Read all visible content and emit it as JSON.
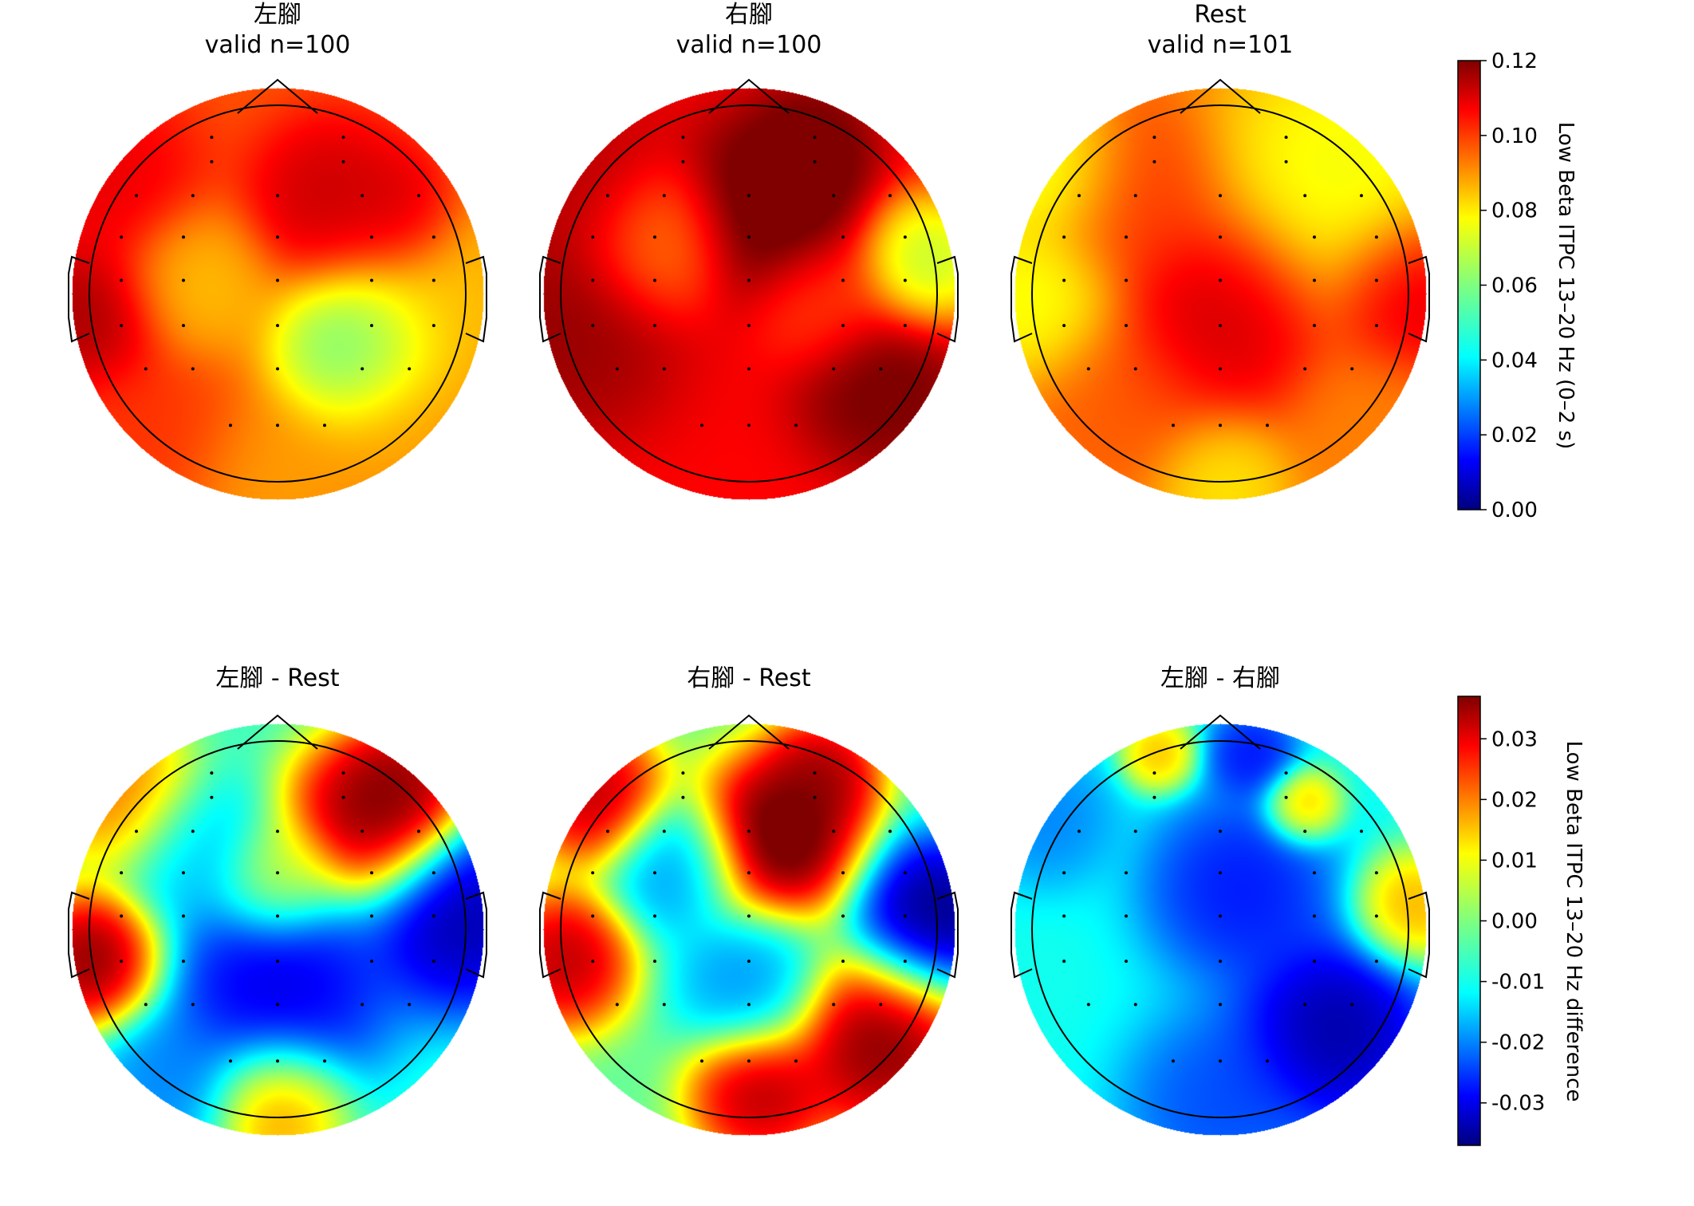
{
  "chart_data": [
    {
      "type": "heatmap",
      "subtype": "topomap",
      "title_lines": [
        "左腳",
        "valid n=100"
      ],
      "colorbar_group": "itpc",
      "blobs": [
        {
          "u": 0.27,
          "v": -0.45,
          "val": 0.115,
          "s": 0.22
        },
        {
          "u": 0.6,
          "v": -0.4,
          "val": 0.115,
          "s": 0.16
        },
        {
          "u": -0.93,
          "v": 0.12,
          "val": 0.12,
          "s": 0.2
        },
        {
          "u": -0.85,
          "v": -0.55,
          "val": 0.11,
          "s": 0.25
        },
        {
          "u": 0.38,
          "v": 0.27,
          "val": 0.05,
          "s": 0.22
        },
        {
          "u": 0.85,
          "v": 0.0,
          "val": 0.08,
          "s": 0.3
        },
        {
          "u": -0.4,
          "v": -0.05,
          "val": 0.08,
          "s": 0.2
        },
        {
          "u": 0.0,
          "v": 0.95,
          "val": 0.085,
          "s": 0.25
        },
        {
          "u": -0.65,
          "v": 0.7,
          "val": 0.1,
          "s": 0.25
        },
        {
          "u": 0.65,
          "v": 0.7,
          "val": 0.085,
          "s": 0.25
        }
      ],
      "base_value": 0.095
    },
    {
      "type": "heatmap",
      "subtype": "topomap",
      "title_lines": [
        "右腳",
        "valid n=100"
      ],
      "colorbar_group": "itpc",
      "blobs": [
        {
          "u": 0.12,
          "v": -0.42,
          "val": 0.13,
          "s": 0.25
        },
        {
          "u": 0.3,
          "v": -0.72,
          "val": 0.125,
          "s": 0.15
        },
        {
          "u": 0.65,
          "v": 0.45,
          "val": 0.125,
          "s": 0.22
        },
        {
          "u": -0.9,
          "v": 0.15,
          "val": 0.12,
          "s": 0.3
        },
        {
          "u": 0.85,
          "v": -0.15,
          "val": 0.06,
          "s": 0.18
        },
        {
          "u": -0.45,
          "v": -0.25,
          "val": 0.085,
          "s": 0.2
        },
        {
          "u": 0.35,
          "v": 0.05,
          "val": 0.095,
          "s": 0.18
        },
        {
          "u": -0.85,
          "v": -0.55,
          "val": 0.115,
          "s": 0.25
        }
      ],
      "base_value": 0.105
    },
    {
      "type": "heatmap",
      "subtype": "topomap",
      "title_lines": [
        "Rest",
        "valid n=101"
      ],
      "colorbar_group": "itpc",
      "blobs": [
        {
          "u": 0.0,
          "v": 0.12,
          "val": 0.115,
          "s": 0.28
        },
        {
          "u": 0.95,
          "v": 0.0,
          "val": 0.115,
          "s": 0.22
        },
        {
          "u": -0.88,
          "v": 0.05,
          "val": 0.07,
          "s": 0.22
        },
        {
          "u": -0.8,
          "v": -0.6,
          "val": 0.065,
          "s": 0.2
        },
        {
          "u": 0.6,
          "v": -0.55,
          "val": 0.07,
          "s": 0.35
        },
        {
          "u": 0.0,
          "v": 0.9,
          "val": 0.075,
          "s": 0.18
        },
        {
          "u": -0.5,
          "v": 0.55,
          "val": 0.095,
          "s": 0.25
        },
        {
          "u": -0.45,
          "v": -0.5,
          "val": 0.1,
          "s": 0.25
        },
        {
          "u": 0.75,
          "v": 0.65,
          "val": 0.09,
          "s": 0.22
        }
      ],
      "base_value": 0.09
    },
    {
      "type": "heatmap",
      "subtype": "topomap",
      "title_lines": [
        "左腳 - Rest"
      ],
      "colorbar_group": "diff",
      "blobs": [
        {
          "u": 0.45,
          "v": -0.55,
          "val": 0.045,
          "s": 0.22
        },
        {
          "u": 0.6,
          "v": -0.7,
          "val": 0.04,
          "s": 0.15
        },
        {
          "u": -0.9,
          "v": 0.15,
          "val": 0.045,
          "s": 0.18
        },
        {
          "u": 0.0,
          "v": 0.3,
          "val": -0.035,
          "s": 0.3
        },
        {
          "u": 0.9,
          "v": -0.05,
          "val": -0.04,
          "s": 0.25
        },
        {
          "u": -0.4,
          "v": -0.4,
          "val": -0.015,
          "s": 0.2
        },
        {
          "u": 0.0,
          "v": 0.85,
          "val": 0.025,
          "s": 0.18
        },
        {
          "u": -0.75,
          "v": -0.65,
          "val": 0.025,
          "s": 0.2
        },
        {
          "u": -0.55,
          "v": 0.75,
          "val": -0.02,
          "s": 0.2
        },
        {
          "u": 0.0,
          "v": -0.25,
          "val": 0.01,
          "s": 0.16
        }
      ],
      "base_value": -0.005
    },
    {
      "type": "heatmap",
      "subtype": "topomap",
      "title_lines": [
        "右腳 - Rest"
      ],
      "colorbar_group": "diff",
      "blobs": [
        {
          "u": 0.15,
          "v": -0.45,
          "val": 0.05,
          "s": 0.22
        },
        {
          "u": 0.35,
          "v": -0.75,
          "val": 0.04,
          "s": 0.15
        },
        {
          "u": 0.65,
          "v": 0.55,
          "val": 0.045,
          "s": 0.25
        },
        {
          "u": -0.9,
          "v": 0.15,
          "val": 0.04,
          "s": 0.18
        },
        {
          "u": 0.9,
          "v": -0.05,
          "val": -0.045,
          "s": 0.22
        },
        {
          "u": -0.35,
          "v": -0.3,
          "val": -0.02,
          "s": 0.18
        },
        {
          "u": 0.0,
          "v": 0.25,
          "val": -0.02,
          "s": 0.2
        },
        {
          "u": -0.75,
          "v": -0.65,
          "val": 0.04,
          "s": 0.18
        },
        {
          "u": 0.05,
          "v": 0.8,
          "val": 0.04,
          "s": 0.18
        }
      ],
      "base_value": -0.002
    },
    {
      "type": "heatmap",
      "subtype": "topomap",
      "title_lines": [
        "左腳 - 右腳"
      ],
      "colorbar_group": "diff",
      "blobs": [
        {
          "u": 0.55,
          "v": 0.5,
          "val": -0.04,
          "s": 0.25
        },
        {
          "u": 0.1,
          "v": -0.2,
          "val": -0.03,
          "s": 0.25
        },
        {
          "u": 0.15,
          "v": -0.85,
          "val": -0.03,
          "s": 0.12
        },
        {
          "u": 0.93,
          "v": -0.1,
          "val": 0.02,
          "s": 0.15
        },
        {
          "u": -0.3,
          "v": -0.85,
          "val": 0.018,
          "s": 0.1
        },
        {
          "u": 0.4,
          "v": -0.6,
          "val": 0.02,
          "s": 0.1
        },
        {
          "u": -0.85,
          "v": -0.55,
          "val": -0.02,
          "s": 0.18
        },
        {
          "u": 0.0,
          "v": 0.85,
          "val": -0.025,
          "s": 0.25
        }
      ],
      "base_value": -0.008
    }
  ],
  "colorbars": {
    "itpc": {
      "colormap": "jet",
      "vmin": 0.0,
      "vmax": 0.12,
      "ticks": [
        "0.00",
        "0.02",
        "0.04",
        "0.06",
        "0.08",
        "0.10",
        "0.12"
      ],
      "tick_values": [
        0.0,
        0.02,
        0.04,
        0.06,
        0.08,
        0.1,
        0.12
      ],
      "label": "Low Beta ITPC 13–20 Hz (0–2 s)"
    },
    "diff": {
      "colormap": "jet",
      "vmin": -0.037,
      "vmax": 0.037,
      "ticks": [
        "-0.03",
        "-0.02",
        "-0.01",
        "0.00",
        "0.01",
        "0.02",
        "0.03"
      ],
      "tick_values": [
        -0.03,
        -0.02,
        -0.01,
        0.0,
        0.01,
        0.02,
        0.03
      ],
      "label": "Low Beta ITPC 13–20 Hz difference"
    }
  },
  "sensors_uv": [
    [
      -0.35,
      -0.83
    ],
    [
      0.35,
      -0.83
    ],
    [
      -0.35,
      -0.7
    ],
    [
      0.35,
      -0.7
    ],
    [
      -0.75,
      -0.52
    ],
    [
      -0.45,
      -0.52
    ],
    [
      0.0,
      -0.52
    ],
    [
      0.45,
      -0.52
    ],
    [
      0.75,
      -0.52
    ],
    [
      -0.83,
      -0.3
    ],
    [
      -0.5,
      -0.3
    ],
    [
      0.0,
      -0.3
    ],
    [
      0.5,
      -0.3
    ],
    [
      0.83,
      -0.3
    ],
    [
      -0.83,
      -0.07
    ],
    [
      -0.5,
      -0.07
    ],
    [
      0.0,
      -0.07
    ],
    [
      0.5,
      -0.07
    ],
    [
      0.83,
      -0.07
    ],
    [
      -0.83,
      0.17
    ],
    [
      -0.5,
      0.17
    ],
    [
      0.0,
      0.17
    ],
    [
      0.5,
      0.17
    ],
    [
      0.83,
      0.17
    ],
    [
      -0.7,
      0.4
    ],
    [
      -0.45,
      0.4
    ],
    [
      0.0,
      0.4
    ],
    [
      0.45,
      0.4
    ],
    [
      0.7,
      0.4
    ],
    [
      -0.25,
      0.7
    ],
    [
      0.0,
      0.7
    ],
    [
      0.25,
      0.7
    ]
  ]
}
